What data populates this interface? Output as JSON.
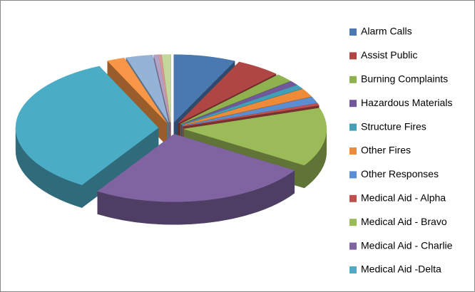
{
  "chart_data": {
    "type": "pie",
    "categories": [
      "Alarm Calls",
      "Assist Public",
      "Burning Complaints",
      "Hazardous Materials",
      "Structure Fires",
      "Other Fires",
      "Other Responses",
      "Medical Aid - Alpha",
      "Medical Aid - Bravo",
      "Medical Aid - Charlie",
      "Medical Aid -Delta",
      null,
      null,
      null,
      null,
      null
    ],
    "values": [
      7,
      5,
      2,
      1,
      1,
      2,
      1.5,
      0.5,
      14,
      25,
      34.2,
      2,
      3,
      0.5,
      0.3,
      1
    ],
    "colors": [
      "#4a78b0",
      "#b04643",
      "#8fb24f",
      "#71589a",
      "#429fb7",
      "#ee8a38",
      "#5b8ed0",
      "#c0504d",
      "#9bbb59",
      "#8064a2",
      "#4bacc6",
      "#f79646",
      "#95b3d7",
      "#b3a2c7",
      "#d99694",
      "#c3d69b"
    ],
    "legend": "right"
  }
}
